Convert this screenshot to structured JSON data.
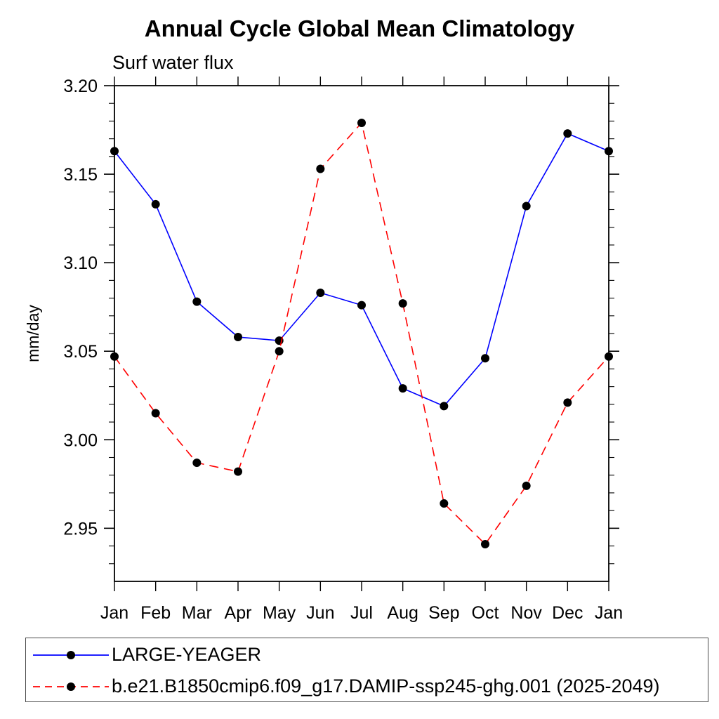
{
  "chart_data": {
    "type": "line",
    "title": "Annual Cycle Global Mean Climatology",
    "subtitle": "Surf water flux",
    "xlabel": "",
    "ylabel": "mm/day",
    "x_categories": [
      "Jan",
      "Feb",
      "Mar",
      "Apr",
      "May",
      "Jun",
      "Jul",
      "Aug",
      "Sep",
      "Oct",
      "Nov",
      "Dec",
      "Jan"
    ],
    "ylim": [
      2.92,
      3.2
    ],
    "ytick_major_step": 0.05,
    "ytick_minor_step": 0.01,
    "ytick_labels": [
      "3.20",
      "3.15",
      "3.10",
      "3.05",
      "3.00",
      "2.95"
    ],
    "grid": false,
    "tick_direction": "out",
    "legend_position": "bottom-left-box",
    "frame_color": "#1a1a1a",
    "series": [
      {
        "name": "LARGE-YEAGER",
        "color": "#0000ff",
        "line_style": "solid",
        "marker": "filled-circle",
        "marker_color": "#000000",
        "values": [
          3.163,
          3.133,
          3.078,
          3.058,
          3.056,
          3.083,
          3.076,
          3.029,
          3.019,
          3.046,
          3.132,
          3.173,
          3.163
        ]
      },
      {
        "name": "b.e21.B1850cmip6.f09_g17.DAMIP-ssp245-ghg.001 (2025-2049)",
        "color": "#ff0000",
        "line_style": "dashed",
        "marker": "filled-circle",
        "marker_color": "#000000",
        "values": [
          3.047,
          3.015,
          2.987,
          2.982,
          3.05,
          3.153,
          3.179,
          3.077,
          2.964,
          2.941,
          2.974,
          3.021,
          3.047
        ]
      }
    ]
  }
}
